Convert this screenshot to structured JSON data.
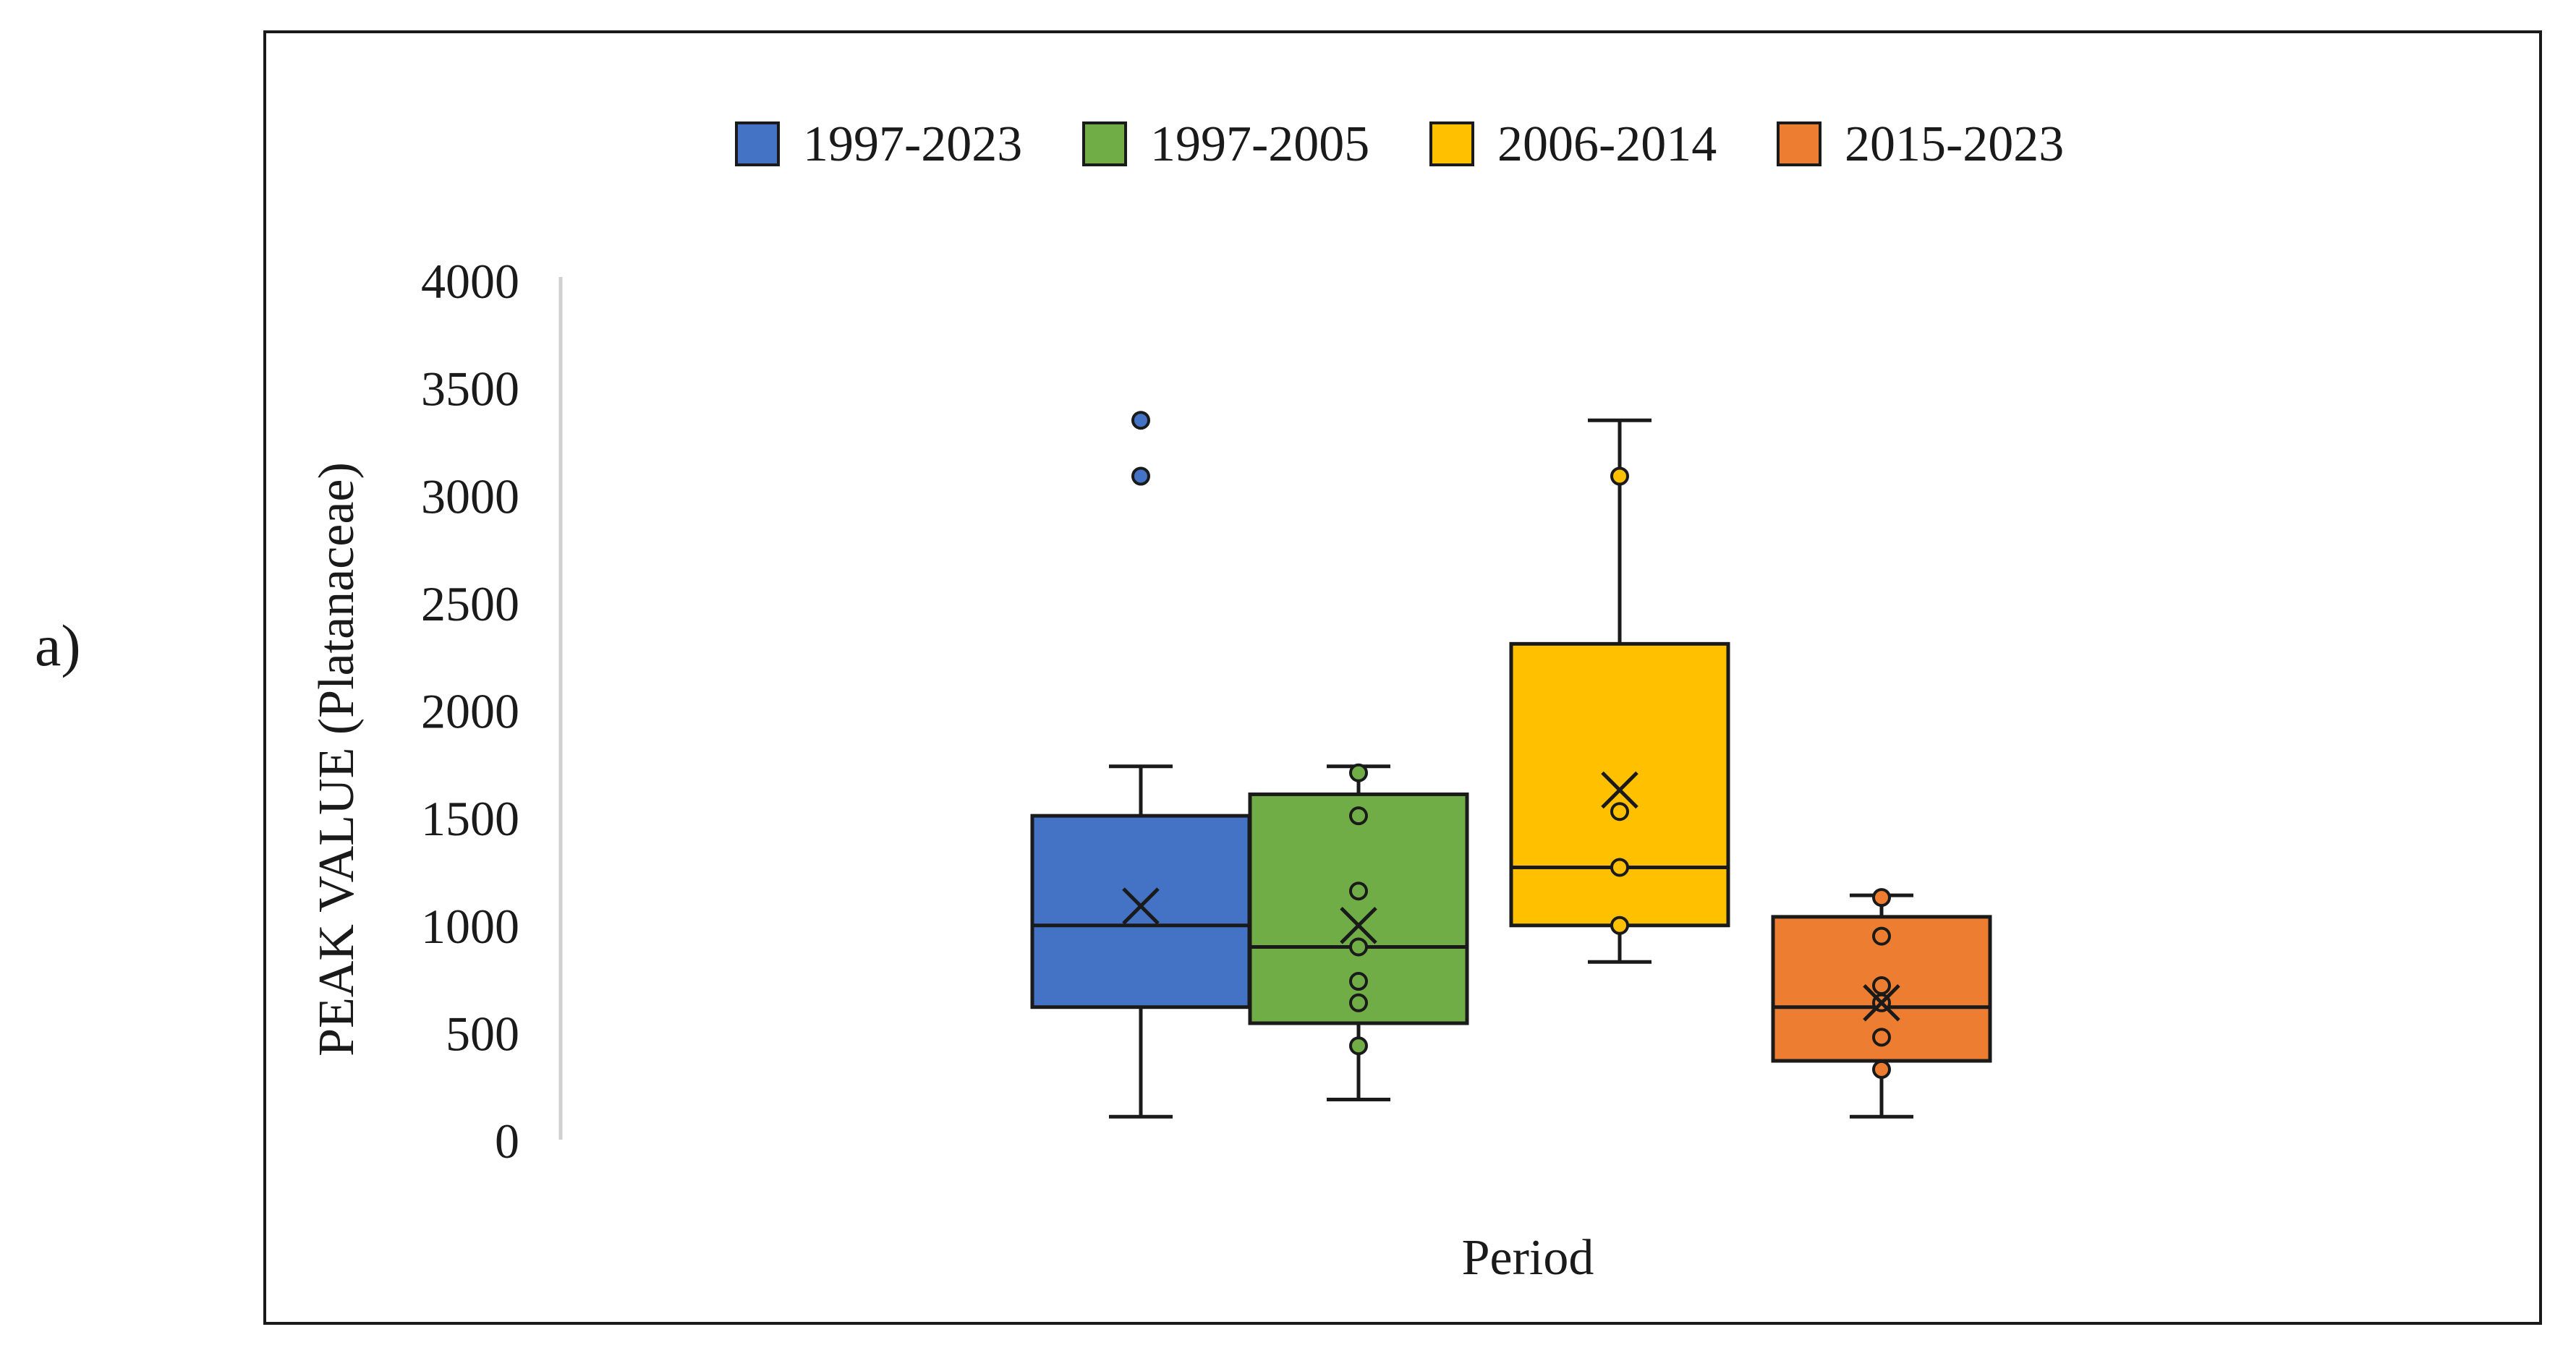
{
  "panel_label": "a)",
  "chart_data": {
    "type": "box",
    "title": "",
    "xlabel": "Period",
    "ylabel": "PEAK VALUE (Platanaceae)",
    "ylim": [
      0,
      4000
    ],
    "yticks": [
      0,
      500,
      1000,
      1500,
      2000,
      2500,
      3000,
      3500,
      4000
    ],
    "legend_position": "top-center",
    "series": [
      {
        "name": "1997-2023",
        "color": "#4472C4",
        "whisker_low": 110,
        "q1": 620,
        "median": 1000,
        "q3": 1510,
        "whisker_high": 1740,
        "mean": 1090,
        "points": [
          3350,
          3090
        ]
      },
      {
        "name": "1997-2005",
        "color": "#70AD47",
        "whisker_low": 190,
        "q1": 545,
        "median": 900,
        "q3": 1610,
        "whisker_high": 1740,
        "mean": 1000,
        "points": [
          1710,
          1510,
          1160,
          900,
          740,
          640,
          440
        ]
      },
      {
        "name": "2006-2014",
        "color": "#FFC000",
        "whisker_low": 830,
        "q1": 1000,
        "median": 1270,
        "q3": 2310,
        "whisker_high": 3350,
        "mean": 1630,
        "points": [
          3090,
          1530,
          1270,
          1000
        ]
      },
      {
        "name": "2015-2023",
        "color": "#ED7D31",
        "whisker_low": 110,
        "q1": 370,
        "median": 620,
        "q3": 1040,
        "whisker_high": 1140,
        "mean": 640,
        "points": [
          1130,
          950,
          720,
          640,
          480,
          330
        ]
      }
    ]
  }
}
